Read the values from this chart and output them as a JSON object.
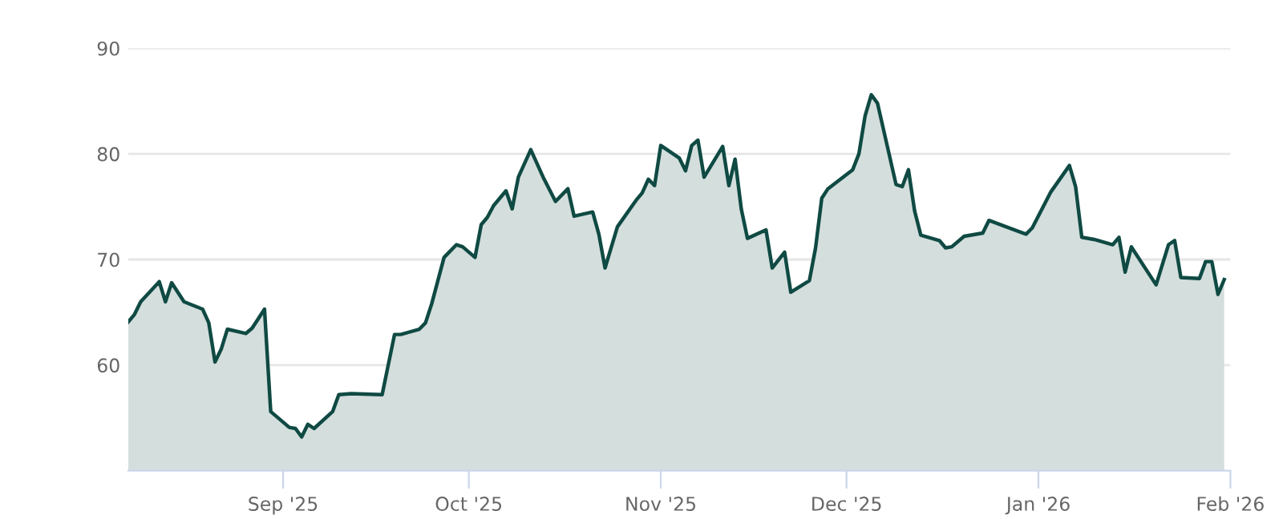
{
  "chart_data": {
    "type": "area",
    "x": [
      "2025-08-07",
      "2025-08-08",
      "2025-08-09",
      "2025-08-12",
      "2025-08-13",
      "2025-08-14",
      "2025-08-16",
      "2025-08-19",
      "2025-08-20",
      "2025-08-21",
      "2025-08-22",
      "2025-08-23",
      "2025-08-26",
      "2025-08-27",
      "2025-08-29",
      "2025-08-30",
      "2025-09-02",
      "2025-09-03",
      "2025-09-04",
      "2025-09-05",
      "2025-09-06",
      "2025-09-09",
      "2025-09-10",
      "2025-09-12",
      "2025-09-17",
      "2025-09-19",
      "2025-09-20",
      "2025-09-23",
      "2025-09-24",
      "2025-09-25",
      "2025-09-26",
      "2025-09-27",
      "2025-09-29",
      "2025-09-30",
      "2025-10-02",
      "2025-10-03",
      "2025-10-04",
      "2025-10-05",
      "2025-10-07",
      "2025-10-08",
      "2025-10-09",
      "2025-10-11",
      "2025-10-13",
      "2025-10-15",
      "2025-10-17",
      "2025-10-18",
      "2025-10-21",
      "2025-10-22",
      "2025-10-23",
      "2025-10-25",
      "2025-10-28",
      "2025-10-29",
      "2025-10-30",
      "2025-10-31",
      "2025-11-01",
      "2025-11-04",
      "2025-11-05",
      "2025-11-06",
      "2025-11-07",
      "2025-11-08",
      "2025-11-11",
      "2025-11-12",
      "2025-11-13",
      "2025-11-14",
      "2025-11-15",
      "2025-11-18",
      "2025-11-19",
      "2025-11-21",
      "2025-11-22",
      "2025-11-25",
      "2025-11-26",
      "2025-11-27",
      "2025-11-28",
      "2025-12-02",
      "2025-12-03",
      "2025-12-04",
      "2025-12-05",
      "2025-12-06",
      "2025-12-09",
      "2025-12-10",
      "2025-12-11",
      "2025-12-12",
      "2025-12-13",
      "2025-12-16",
      "2025-12-17",
      "2025-12-18",
      "2025-12-20",
      "2025-12-23",
      "2025-12-24",
      "2025-12-30",
      "2025-12-31",
      "2026-01-03",
      "2026-01-06",
      "2026-01-07",
      "2026-01-08",
      "2026-01-10",
      "2026-01-13",
      "2026-01-14",
      "2026-01-15",
      "2026-01-16",
      "2026-01-20",
      "2026-01-22",
      "2026-01-23",
      "2026-01-24",
      "2026-01-27",
      "2026-01-28",
      "2026-01-29",
      "2026-01-30",
      "2026-01-31"
    ],
    "series": [
      {
        "color": "#0f4a43",
        "values": [
          64.1,
          64.8,
          66.0,
          67.9,
          66.0,
          67.8,
          66.0,
          65.3,
          64.0,
          60.3,
          61.5,
          63.4,
          63.0,
          63.5,
          65.3,
          55.6,
          54.1,
          54.0,
          53.2,
          54.4,
          54.0,
          55.6,
          57.2,
          57.3,
          57.2,
          62.9,
          62.9,
          63.4,
          64.0,
          65.8,
          68.0,
          70.2,
          71.4,
          71.2,
          70.2,
          73.3,
          74.0,
          75.1,
          76.5,
          74.8,
          77.8,
          80.4,
          77.8,
          75.5,
          76.7,
          74.1,
          74.5,
          72.4,
          69.2,
          73.1,
          75.6,
          76.3,
          77.6,
          77.0,
          80.8,
          79.6,
          78.4,
          80.8,
          81.3,
          77.8,
          80.7,
          77.0,
          79.5,
          74.8,
          72.0,
          72.8,
          69.2,
          70.7,
          66.9,
          68.0,
          71.1,
          75.8,
          76.7,
          78.5,
          80.0,
          83.6,
          85.6,
          84.8,
          77.1,
          76.9,
          78.5,
          74.6,
          72.3,
          71.8,
          71.1,
          71.2,
          72.2,
          72.5,
          73.7,
          72.4,
          73.0,
          76.4,
          78.9,
          76.9,
          72.1,
          71.9,
          71.4,
          72.1,
          68.8,
          71.2,
          67.6,
          71.4,
          71.8,
          68.3,
          68.2,
          69.8,
          69.8,
          66.7,
          68.1
        ]
      }
    ],
    "xlim": [
      "2025-08-07",
      "2026-02-01"
    ],
    "xticks": [
      {
        "value": "2025-09-01",
        "label": "Sep '25"
      },
      {
        "value": "2025-10-01",
        "label": "Oct '25"
      },
      {
        "value": "2025-11-01",
        "label": "Nov '25"
      },
      {
        "value": "2025-12-01",
        "label": "Dec '25"
      },
      {
        "value": "2026-01-01",
        "label": "Jan '26"
      },
      {
        "value": "2026-02-01",
        "label": "Feb '26"
      }
    ],
    "ylim": [
      50,
      90
    ],
    "yticks": [
      60,
      70,
      80,
      90
    ],
    "grid": "y"
  }
}
